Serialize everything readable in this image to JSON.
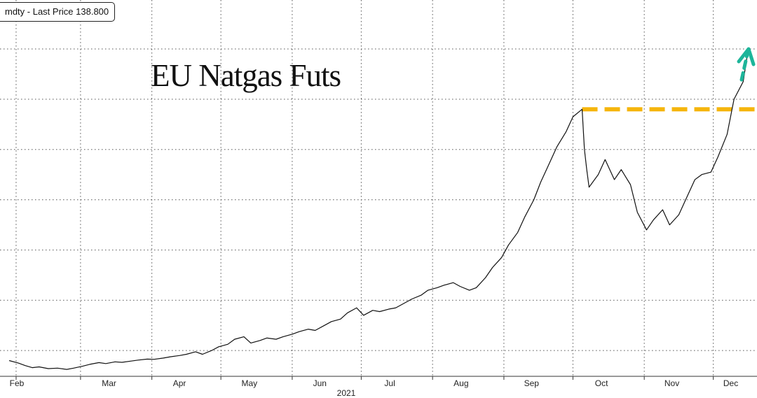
{
  "legend": {
    "text": "mdty - Last Price 138.800"
  },
  "annotation": {
    "text": "EU Natgas Futs"
  },
  "colors": {
    "line": "#111111",
    "grid": "#555555",
    "resistance": "#F5B50C",
    "arrow": "#1DB59A"
  },
  "chart_data": {
    "type": "line",
    "title": "",
    "xlabel": "2021",
    "ylabel": "",
    "x_tick_labels": [
      "Feb",
      "Mar",
      "Apr",
      "May",
      "Jun",
      "Jul",
      "Aug",
      "Sep",
      "Oct",
      "Nov",
      "Dec"
    ],
    "year_label": "2021",
    "ylim": [
      0,
      140
    ],
    "grid": true,
    "last_price": 138.8,
    "resistance_level": 116.0,
    "series": [
      {
        "name": "",
        "points": [
          [
            "2021-01-29",
            16.0
          ],
          [
            "2021-02-02",
            15.0
          ],
          [
            "2021-02-05",
            14.0
          ],
          [
            "2021-02-08",
            13.2
          ],
          [
            "2021-02-11",
            13.5
          ],
          [
            "2021-02-15",
            12.8
          ],
          [
            "2021-02-19",
            13.0
          ],
          [
            "2021-02-23",
            12.5
          ],
          [
            "2021-02-26",
            13.0
          ],
          [
            "2021-03-02",
            13.8
          ],
          [
            "2021-03-05",
            14.5
          ],
          [
            "2021-03-09",
            15.2
          ],
          [
            "2021-03-12",
            14.8
          ],
          [
            "2021-03-16",
            15.5
          ],
          [
            "2021-03-19",
            15.3
          ],
          [
            "2021-03-23",
            15.8
          ],
          [
            "2021-03-26",
            16.2
          ],
          [
            "2021-03-30",
            16.6
          ],
          [
            "2021-04-02",
            16.5
          ],
          [
            "2021-04-06",
            17.0
          ],
          [
            "2021-04-09",
            17.5
          ],
          [
            "2021-04-13",
            18.0
          ],
          [
            "2021-04-16",
            18.5
          ],
          [
            "2021-04-20",
            19.5
          ],
          [
            "2021-04-23",
            18.5
          ],
          [
            "2021-04-27",
            20.0
          ],
          [
            "2021-04-30",
            21.5
          ],
          [
            "2021-05-04",
            22.5
          ],
          [
            "2021-05-07",
            24.5
          ],
          [
            "2021-05-11",
            25.5
          ],
          [
            "2021-05-14",
            23.0
          ],
          [
            "2021-05-18",
            24.0
          ],
          [
            "2021-05-21",
            25.0
          ],
          [
            "2021-05-25",
            24.5
          ],
          [
            "2021-05-28",
            25.5
          ],
          [
            "2021-06-01",
            26.5
          ],
          [
            "2021-06-04",
            27.5
          ],
          [
            "2021-06-08",
            28.5
          ],
          [
            "2021-06-11",
            28.0
          ],
          [
            "2021-06-15",
            30.0
          ],
          [
            "2021-06-18",
            31.5
          ],
          [
            "2021-06-22",
            32.5
          ],
          [
            "2021-06-25",
            35.0
          ],
          [
            "2021-06-29",
            37.0
          ],
          [
            "2021-07-02",
            34.0
          ],
          [
            "2021-07-06",
            36.0
          ],
          [
            "2021-07-09",
            35.5
          ],
          [
            "2021-07-13",
            36.5
          ],
          [
            "2021-07-16",
            37.0
          ],
          [
            "2021-07-20",
            39.0
          ],
          [
            "2021-07-23",
            40.5
          ],
          [
            "2021-07-27",
            42.0
          ],
          [
            "2021-07-30",
            44.0
          ],
          [
            "2021-08-03",
            45.0
          ],
          [
            "2021-08-06",
            46.0
          ],
          [
            "2021-08-10",
            47.0
          ],
          [
            "2021-08-13",
            45.5
          ],
          [
            "2021-08-17",
            44.0
          ],
          [
            "2021-08-20",
            45.0
          ],
          [
            "2021-08-24",
            49.0
          ],
          [
            "2021-08-27",
            53.0
          ],
          [
            "2021-08-31",
            57.0
          ],
          [
            "2021-09-03",
            62.0
          ],
          [
            "2021-09-07",
            67.0
          ],
          [
            "2021-09-10",
            73.0
          ],
          [
            "2021-09-14",
            80.0
          ],
          [
            "2021-09-17",
            87.0
          ],
          [
            "2021-09-20",
            93.0
          ],
          [
            "2021-09-24",
            101.0
          ],
          [
            "2021-09-28",
            107.0
          ],
          [
            "2021-10-01",
            113.0
          ],
          [
            "2021-10-05",
            116.0
          ],
          [
            "2021-10-06",
            100.0
          ],
          [
            "2021-10-07",
            92.0
          ],
          [
            "2021-10-08",
            85.0
          ],
          [
            "2021-10-12",
            90.0
          ],
          [
            "2021-10-15",
            96.0
          ],
          [
            "2021-10-19",
            88.0
          ],
          [
            "2021-10-22",
            92.0
          ],
          [
            "2021-10-26",
            86.0
          ],
          [
            "2021-10-29",
            75.0
          ],
          [
            "2021-11-02",
            68.0
          ],
          [
            "2021-11-05",
            72.0
          ],
          [
            "2021-11-09",
            76.0
          ],
          [
            "2021-11-12",
            70.0
          ],
          [
            "2021-11-16",
            74.0
          ],
          [
            "2021-11-19",
            80.0
          ],
          [
            "2021-11-23",
            88.0
          ],
          [
            "2021-11-26",
            90.0
          ],
          [
            "2021-11-30",
            91.0
          ],
          [
            "2021-12-03",
            97.0
          ],
          [
            "2021-12-07",
            106.0
          ],
          [
            "2021-12-10",
            120.0
          ],
          [
            "2021-12-14",
            127.0
          ],
          [
            "2021-12-16",
            138.8
          ]
        ]
      }
    ]
  }
}
